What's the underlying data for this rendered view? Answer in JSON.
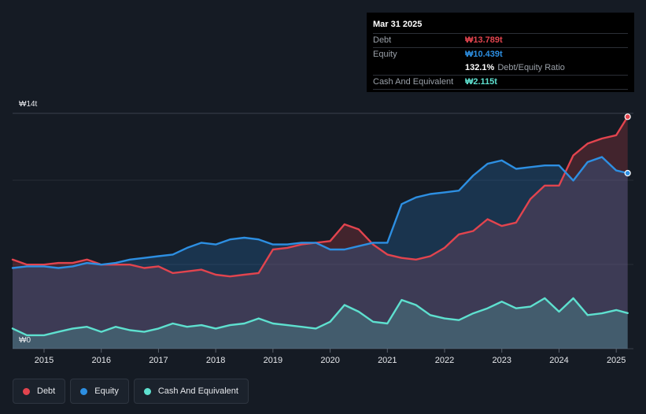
{
  "chart_data": {
    "type": "area",
    "title": "",
    "xlabel": "",
    "ylabel": "",
    "y_unit_prefix": "₩",
    "y_axis_label_top": "₩14t",
    "y_axis_label_bottom": "₩0",
    "ylim": [
      0,
      14
    ],
    "xlim": [
      2014.45,
      2025.3
    ],
    "x_ticks": [
      2015,
      2016,
      2017,
      2018,
      2019,
      2020,
      2021,
      2022,
      2023,
      2024,
      2025
    ],
    "x_tick_labels": [
      "2015",
      "2016",
      "2017",
      "2018",
      "2019",
      "2020",
      "2021",
      "2022",
      "2023",
      "2024",
      "2025"
    ],
    "grid": "horizontal",
    "colors": {
      "debt": "#e2444e",
      "equity": "#2d8fe2",
      "cash": "#5ee0cf"
    },
    "series": [
      {
        "name": "Debt",
        "key": "debt",
        "x": [
          2014.45,
          2014.7,
          2015.0,
          2015.25,
          2015.5,
          2015.75,
          2016.0,
          2016.25,
          2016.5,
          2016.75,
          2017.0,
          2017.25,
          2017.5,
          2017.75,
          2018.0,
          2018.25,
          2018.5,
          2018.75,
          2019.0,
          2019.25,
          2019.5,
          2019.75,
          2020.0,
          2020.25,
          2020.5,
          2020.75,
          2021.0,
          2021.25,
          2021.5,
          2021.75,
          2022.0,
          2022.25,
          2022.5,
          2022.75,
          2023.0,
          2023.25,
          2023.5,
          2023.75,
          2024.0,
          2024.25,
          2024.5,
          2024.75,
          2025.0,
          2025.2
        ],
        "values": [
          5.3,
          5.0,
          5.0,
          5.1,
          5.1,
          5.3,
          5.0,
          5.0,
          5.0,
          4.8,
          4.9,
          4.5,
          4.6,
          4.7,
          4.4,
          4.3,
          4.4,
          4.5,
          5.9,
          6.0,
          6.2,
          6.3,
          6.4,
          7.4,
          7.1,
          6.2,
          5.6,
          5.4,
          5.3,
          5.5,
          6.0,
          6.8,
          7.0,
          7.7,
          7.3,
          7.5,
          8.9,
          9.7,
          9.7,
          11.5,
          12.2,
          12.5,
          12.7,
          13.8
        ]
      },
      {
        "name": "Equity",
        "key": "equity",
        "x": [
          2014.45,
          2014.7,
          2015.0,
          2015.25,
          2015.5,
          2015.75,
          2016.0,
          2016.25,
          2016.5,
          2016.75,
          2017.0,
          2017.25,
          2017.5,
          2017.75,
          2018.0,
          2018.25,
          2018.5,
          2018.75,
          2019.0,
          2019.25,
          2019.5,
          2019.75,
          2020.0,
          2020.25,
          2020.5,
          2020.75,
          2021.0,
          2021.25,
          2021.5,
          2021.75,
          2022.0,
          2022.25,
          2022.5,
          2022.75,
          2023.0,
          2023.25,
          2023.5,
          2023.75,
          2024.0,
          2024.25,
          2024.5,
          2024.75,
          2025.0,
          2025.2
        ],
        "values": [
          4.8,
          4.9,
          4.9,
          4.8,
          4.9,
          5.1,
          5.0,
          5.1,
          5.3,
          5.4,
          5.5,
          5.6,
          6.0,
          6.3,
          6.2,
          6.5,
          6.6,
          6.5,
          6.2,
          6.2,
          6.3,
          6.3,
          5.9,
          5.9,
          6.1,
          6.3,
          6.3,
          8.6,
          9.0,
          9.2,
          9.3,
          9.4,
          10.3,
          11.0,
          11.2,
          10.7,
          10.8,
          10.9,
          10.9,
          10.0,
          11.1,
          11.4,
          10.6,
          10.44
        ]
      },
      {
        "name": "Cash And Equivalent",
        "key": "cash",
        "x": [
          2014.45,
          2014.7,
          2015.0,
          2015.25,
          2015.5,
          2015.75,
          2016.0,
          2016.25,
          2016.5,
          2016.75,
          2017.0,
          2017.25,
          2017.5,
          2017.75,
          2018.0,
          2018.25,
          2018.5,
          2018.75,
          2019.0,
          2019.25,
          2019.5,
          2019.75,
          2020.0,
          2020.25,
          2020.5,
          2020.75,
          2021.0,
          2021.25,
          2021.5,
          2021.75,
          2022.0,
          2022.25,
          2022.5,
          2022.75,
          2023.0,
          2023.25,
          2023.5,
          2023.75,
          2024.0,
          2024.25,
          2024.5,
          2024.75,
          2025.0,
          2025.2
        ],
        "values": [
          1.2,
          0.8,
          0.8,
          1.0,
          1.2,
          1.3,
          1.0,
          1.3,
          1.1,
          1.0,
          1.2,
          1.5,
          1.3,
          1.4,
          1.2,
          1.4,
          1.5,
          1.8,
          1.5,
          1.4,
          1.3,
          1.2,
          1.6,
          2.6,
          2.2,
          1.6,
          1.5,
          2.9,
          2.6,
          2.0,
          1.8,
          1.7,
          2.1,
          2.4,
          2.8,
          2.4,
          2.5,
          3.0,
          2.2,
          3.0,
          2.0,
          2.1,
          2.3,
          2.115
        ]
      }
    ]
  },
  "tooltip": {
    "date": "Mar 31 2025",
    "debt_label": "Debt",
    "debt_value": "₩13.789t",
    "equity_label": "Equity",
    "equity_value": "₩10.439t",
    "ratio_value": "132.1%",
    "ratio_label": "Debt/Equity Ratio",
    "cash_label": "Cash And Equivalent",
    "cash_value": "₩2.115t"
  },
  "legend": {
    "debt": "Debt",
    "equity": "Equity",
    "cash": "Cash And Equivalent"
  }
}
